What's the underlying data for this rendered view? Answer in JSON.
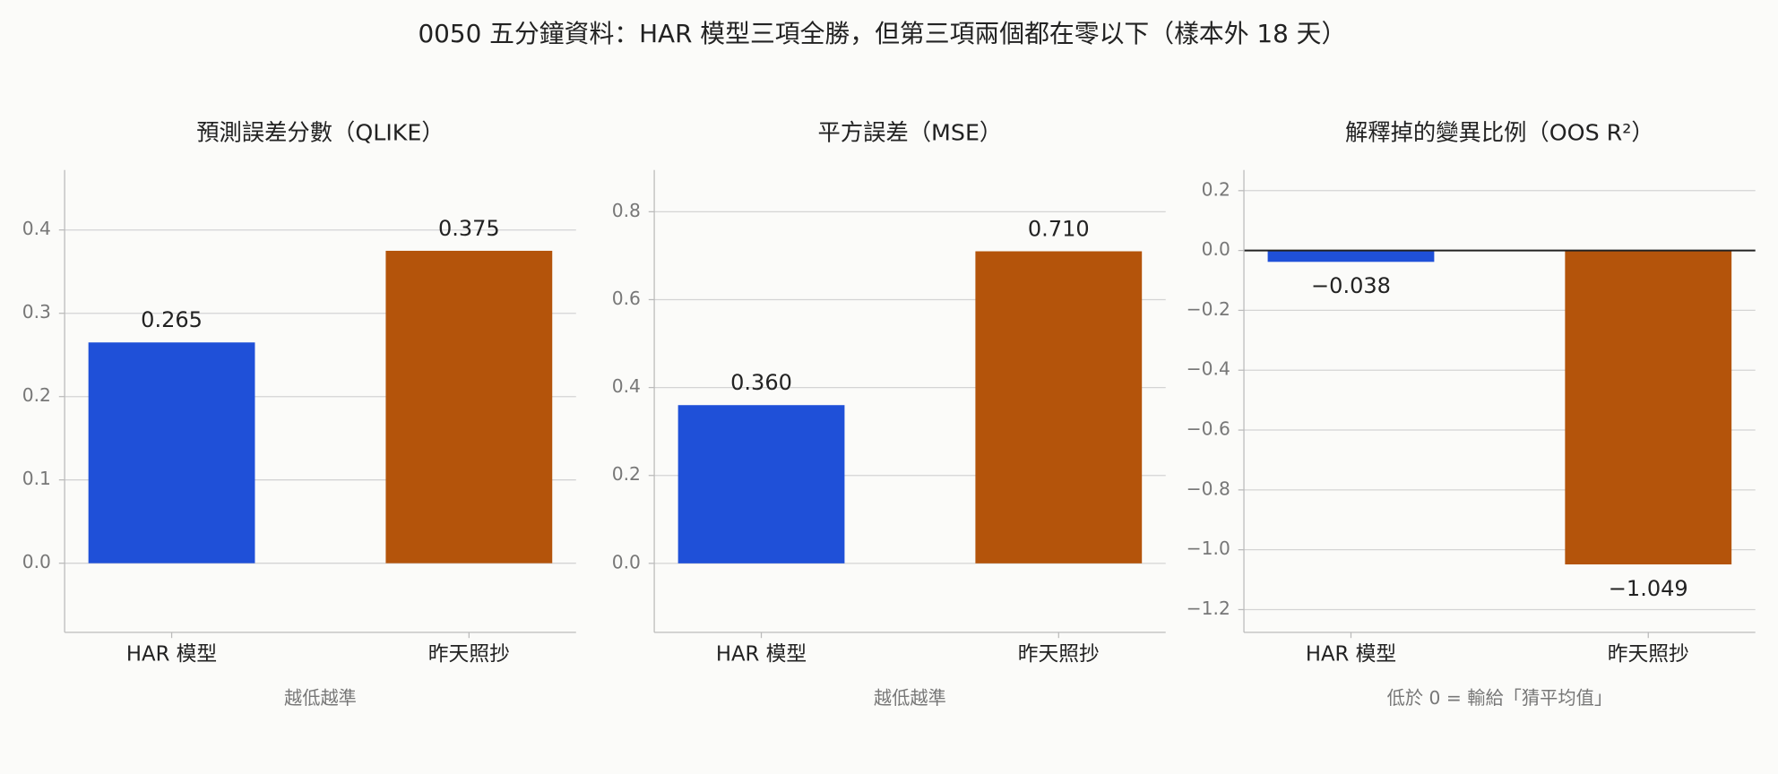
{
  "title": "0050 五分鐘資料：HAR 模型三項全勝，但第三項兩個都在零以下（樣本外 18 天）",
  "chart_data": [
    {
      "type": "bar",
      "title": "預測誤差分數（QLIKE）",
      "xlabel": "越低越準",
      "categories": [
        "HAR 模型",
        "昨天照抄"
      ],
      "values": [
        0.265,
        0.375
      ],
      "value_labels": [
        "0.265",
        "0.375"
      ],
      "colors": [
        "#1f50d8",
        "#b4540b"
      ],
      "ylim": [
        -0.083,
        0.472
      ],
      "yticks": [
        {
          "value": 0,
          "label": "0.0"
        },
        0.1,
        0.2,
        0.3,
        0.4
      ],
      "grid": true
    },
    {
      "type": "bar",
      "title": "平方誤差（MSE）",
      "xlabel": "越低越準",
      "categories": [
        "HAR 模型",
        "昨天照抄"
      ],
      "values": [
        0.36,
        0.71
      ],
      "value_labels": [
        "0.360",
        "0.710"
      ],
      "colors": [
        "#1f50d8",
        "#b4540b"
      ],
      "ylim": [
        -0.157,
        0.895
      ],
      "yticks": [
        {
          "value": 0,
          "label": "0.0"
        },
        0.2,
        0.4,
        0.6,
        0.8
      ],
      "grid": true
    },
    {
      "type": "bar",
      "title": "解釋掉的變異比例（OOS R²）",
      "xlabel": "低於 0 = 輸給「猜平均值」",
      "categories": [
        "HAR 模型",
        "昨天照抄"
      ],
      "values": [
        -0.038,
        -1.049
      ],
      "value_labels": [
        "−0.038",
        "−1.049"
      ],
      "colors": [
        "#1f50d8",
        "#b4540b"
      ],
      "ylim": [
        -1.276,
        0.269
      ],
      "yticks": [
        {
          "value": -1.2,
          "label": "−1.2"
        },
        {
          "value": -1.0,
          "label": "−1.0"
        },
        {
          "value": -0.8,
          "label": "−0.8"
        },
        {
          "value": -0.6,
          "label": "−0.6"
        },
        {
          "value": -0.4,
          "label": "−0.4"
        },
        {
          "value": -0.2,
          "label": "−0.2"
        },
        {
          "value": 0,
          "label": "0.0"
        },
        0.2
      ],
      "grid": true,
      "zero_line": true
    }
  ]
}
